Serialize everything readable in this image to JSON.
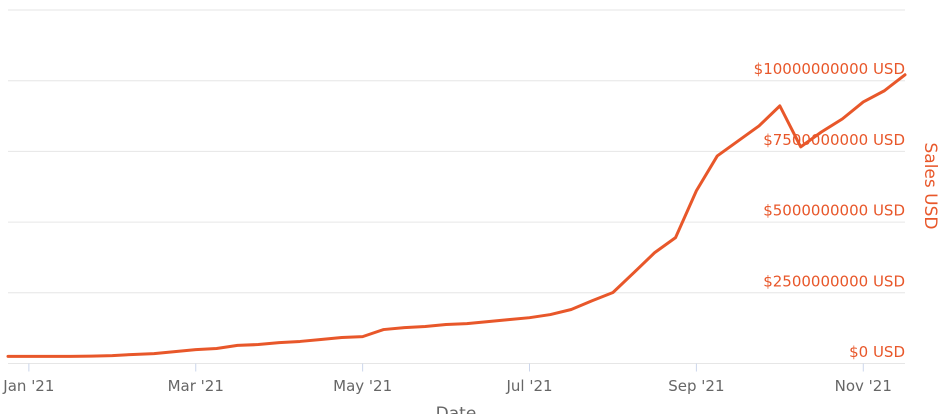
{
  "chart_data": {
    "type": "line",
    "x_label": "Date",
    "y_label": "Sales USD",
    "categories": [
      null,
      "Jan '21",
      null,
      null,
      null,
      null,
      null,
      null,
      null,
      "Mar '21",
      null,
      null,
      null,
      null,
      null,
      null,
      null,
      "May '21",
      null,
      null,
      null,
      null,
      null,
      null,
      null,
      "Jul '21",
      null,
      null,
      null,
      null,
      null,
      null,
      null,
      "Sep '21",
      null,
      null,
      null,
      null,
      null,
      null,
      null,
      "Nov '21",
      null,
      null
    ],
    "series": [
      {
        "name": "Sales USD",
        "color": "#e8572a",
        "values": [
          250000000,
          250000000,
          250000000,
          250000000,
          260000000,
          280000000,
          320000000,
          350000000,
          420000000,
          490000000,
          530000000,
          640000000,
          670000000,
          740000000,
          780000000,
          850000000,
          920000000,
          950000000,
          1200000000,
          1270000000,
          1310000000,
          1380000000,
          1410000000,
          1480000000,
          1550000000,
          1620000000,
          1730000000,
          1910000000,
          2220000000,
          2510000000,
          3210000000,
          3920000000,
          4450000000,
          6110000000,
          7340000000,
          7870000000,
          8400000000,
          9110000000,
          7660000000,
          8190000000,
          8650000000,
          9250000000,
          9640000000,
          10210000000
        ]
      }
    ],
    "ylim": [
      0,
      12500000000
    ],
    "yticks": [
      {
        "value": 0,
        "label": "$0 USD"
      },
      {
        "value": 2500000000,
        "label": "$2500000000 USD"
      },
      {
        "value": 5000000000,
        "label": "$5000000000 USD"
      },
      {
        "value": 7500000000,
        "label": "$7500000000 USD"
      },
      {
        "value": 10000000000,
        "label": "$10000000000 USD"
      }
    ],
    "grid": true
  }
}
